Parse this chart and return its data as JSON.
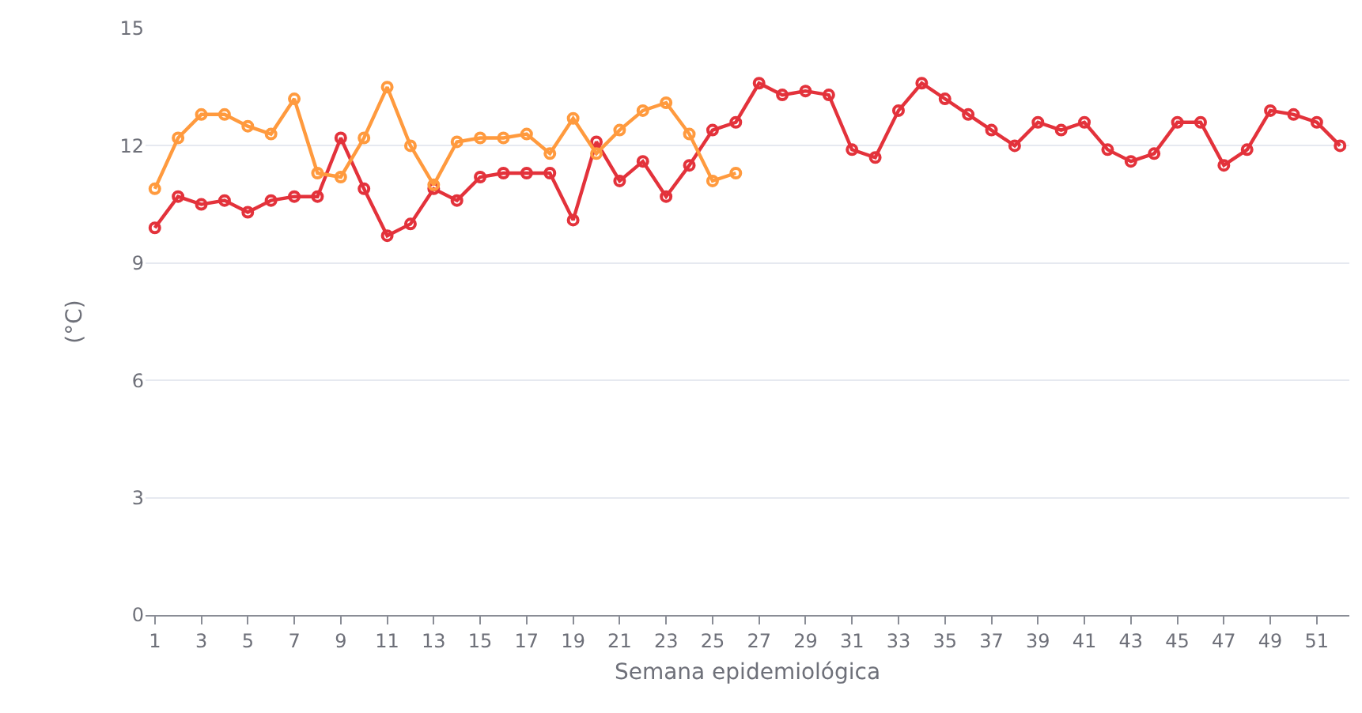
{
  "chart_data": {
    "type": "line",
    "xlabel": "Semana epidemiológica",
    "ylabel": "(°C)",
    "x": [
      1,
      2,
      3,
      4,
      5,
      6,
      7,
      8,
      9,
      10,
      11,
      12,
      13,
      14,
      15,
      16,
      17,
      18,
      19,
      20,
      21,
      22,
      23,
      24,
      25,
      26,
      27,
      28,
      29,
      30,
      31,
      32,
      33,
      34,
      35,
      36,
      37,
      38,
      39,
      40,
      41,
      42,
      43,
      44,
      45,
      46,
      47,
      48,
      49,
      50,
      51,
      52
    ],
    "xlim": [
      0.6,
      52.4
    ],
    "xticks": [
      1,
      3,
      5,
      7,
      9,
      11,
      13,
      15,
      17,
      19,
      21,
      23,
      25,
      27,
      29,
      31,
      33,
      35,
      37,
      39,
      41,
      43,
      45,
      47,
      49,
      51
    ],
    "ylim": [
      0,
      15
    ],
    "yticks": [
      0,
      3,
      6,
      9,
      12,
      15
    ],
    "grid": "y",
    "marker": "circle",
    "line_style": "solid",
    "series": [
      {
        "color": "#e3323b",
        "values": [
          9.9,
          10.7,
          10.5,
          10.6,
          10.3,
          10.6,
          10.7,
          10.7,
          12.2,
          10.9,
          9.7,
          10.0,
          10.9,
          10.6,
          11.2,
          11.3,
          11.3,
          11.3,
          10.1,
          12.1,
          11.1,
          11.6,
          10.7,
          11.5,
          12.4,
          12.6,
          13.6,
          13.3,
          13.4,
          13.3,
          11.9,
          11.7,
          12.9,
          13.6,
          13.2,
          12.8,
          12.4,
          12.0,
          12.6,
          12.4,
          12.6,
          11.9,
          11.6,
          11.8,
          12.6,
          12.6,
          11.5,
          11.9,
          12.9,
          12.8,
          12.6,
          12.0
        ]
      },
      {
        "color": "#ff9a3e",
        "x": [
          1,
          2,
          3,
          4,
          5,
          6,
          7,
          8,
          9,
          10,
          11,
          12,
          13,
          14,
          15,
          16,
          17,
          18,
          19,
          20,
          21,
          22,
          23,
          24,
          25,
          26
        ],
        "values": [
          10.9,
          12.2,
          12.8,
          12.8,
          12.5,
          12.3,
          13.2,
          11.3,
          11.2,
          12.2,
          13.5,
          12.0,
          11.0,
          12.1,
          12.2,
          12.2,
          12.3,
          11.8,
          12.7,
          11.8,
          12.4,
          12.9,
          13.1,
          12.3,
          11.1,
          11.3
        ]
      }
    ]
  }
}
